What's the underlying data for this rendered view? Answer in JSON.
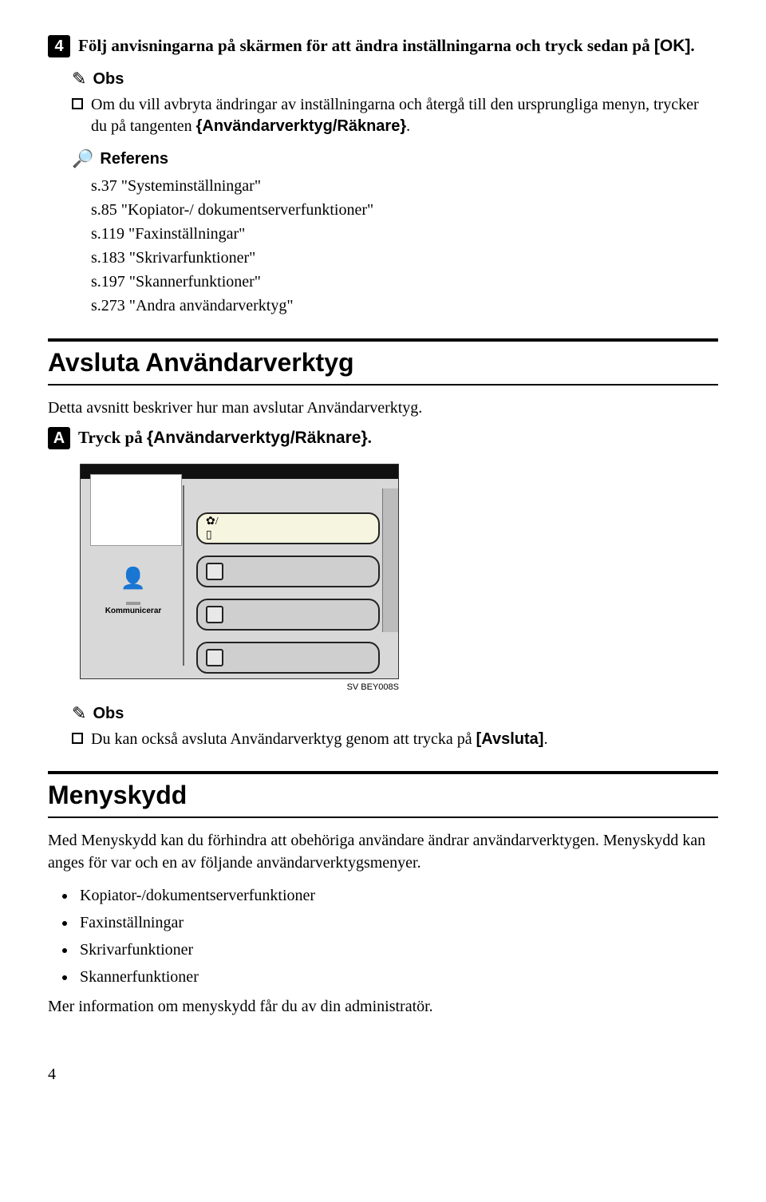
{
  "step4": {
    "num": "4",
    "text_pre": "Följ anvisningarna på skärmen för att ändra inställningarna och tryck sedan på ",
    "key": "[OK]",
    "text_post": "."
  },
  "obs1": {
    "heading": "Obs",
    "pre": "Om du vill avbryta ändringar av inställningarna och återgå till den ursprungliga menyn, trycker du på tangenten ",
    "key_open": "{",
    "key": "Användarverktyg/Räknare",
    "key_close": "}",
    "post": "."
  },
  "referens": {
    "heading": "Referens",
    "items": [
      "s.37 \"Systeminställningar\"",
      "s.85 \"Kopiator-/ dokumentserverfunktioner\"",
      "s.119 \"Faxinställningar\"",
      "s.183 \"Skrivarfunktioner\"",
      "s.197 \"Skannerfunktioner\"",
      "s.273 \"Andra användarverktyg\""
    ]
  },
  "section_avsluta": {
    "title": "Avsluta Användarverktyg",
    "intro": "Detta avsnitt beskriver hur man avslutar Användarverktyg."
  },
  "stepA": {
    "num": "A",
    "pre": "Tryck på ",
    "key_open": "{",
    "key": "Användarverktyg/Räknare",
    "key_close": "}",
    "post": "."
  },
  "figure": {
    "comm_label": "Kommunicerar",
    "caption": "SV BEY008S"
  },
  "obs2": {
    "heading": "Obs",
    "pre": "Du kan också avsluta Användarverktyg genom att trycka på ",
    "key": "[Avsluta]",
    "post": "."
  },
  "section_meny": {
    "title": "Menyskydd",
    "p1": "Med Menyskydd kan du förhindra att obehöriga användare ändrar användarverktygen. Menyskydd kan anges för var och en av följande användarverktygsmenyer.",
    "bullets": [
      "Kopiator-/dokumentserverfunktioner",
      "Faxinställningar",
      "Skrivarfunktioner",
      "Skannerfunktioner"
    ],
    "p2": "Mer information om menyskydd får du av din administratör."
  },
  "page_number": "4"
}
